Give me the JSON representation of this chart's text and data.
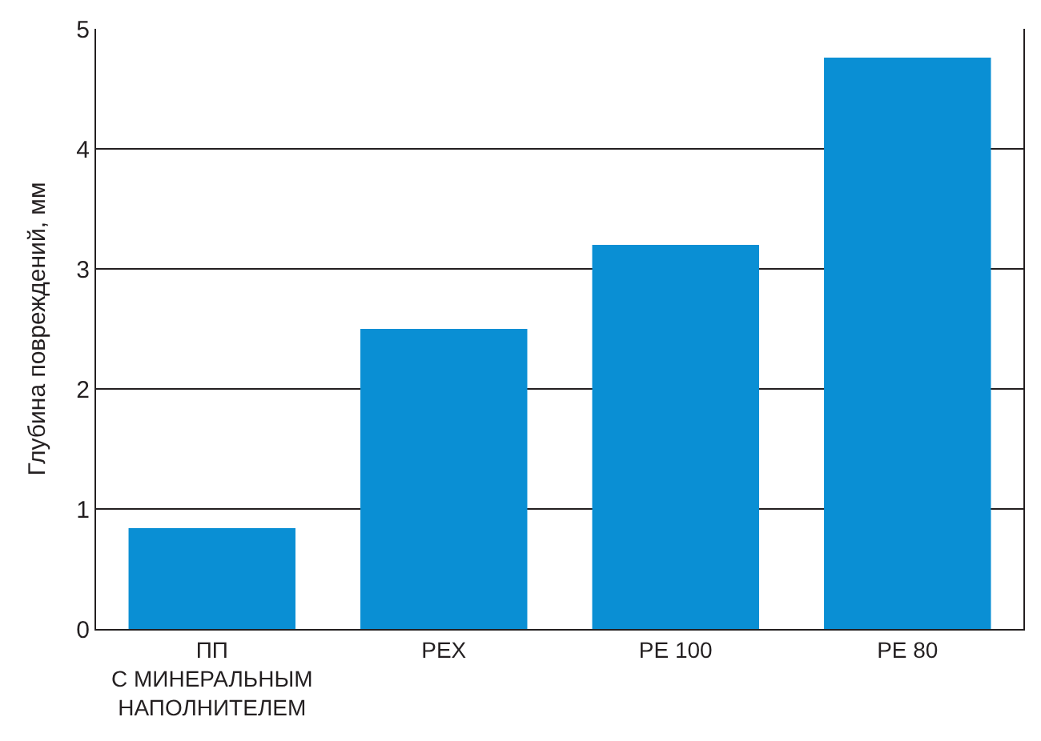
{
  "chart_data": {
    "type": "bar",
    "ylabel": "Глубина повреждений, мм",
    "categories": [
      "ПП\nС МИНЕРАЛЬНЫМ\nНАПОЛНИТЕЛЕМ",
      "PEX",
      "PE 100",
      "PE 80"
    ],
    "values": [
      0.84,
      2.5,
      3.2,
      4.76
    ],
    "color": "#0a8fd4",
    "ylim": [
      0,
      5
    ],
    "yticks": [
      0,
      1,
      2,
      3,
      4,
      5
    ],
    "grid": "y",
    "legend": false
  }
}
